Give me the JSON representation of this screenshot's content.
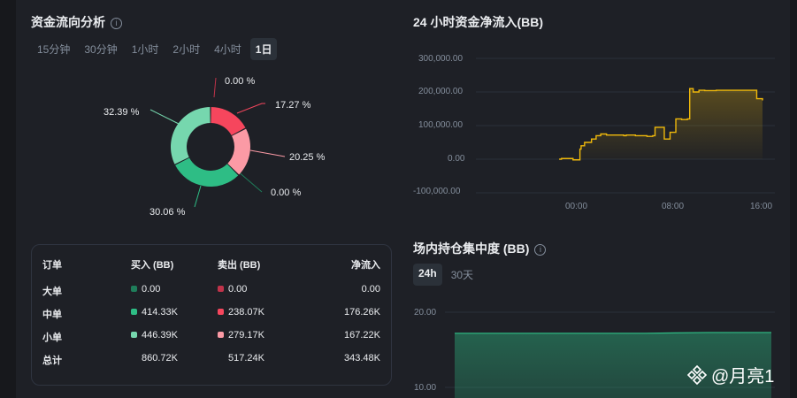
{
  "colors": {
    "bg": "#17181c",
    "panel": "#1e2026",
    "green_dark": "#1f7d5a",
    "green": "#2ebd85",
    "green_light": "#76d7ae",
    "red": "#f6465d",
    "red_light": "#fb9aa5",
    "red_dark": "#c0334a",
    "gold": "#f0b90b"
  },
  "flow": {
    "title": "资金流向分析",
    "tabs": [
      "15分钟",
      "30分钟",
      "1小时",
      "2小时",
      "4小时",
      "1日"
    ],
    "active_tab": "1日",
    "donut": {
      "labels": [
        "0.00 %",
        "17.27 %",
        "20.25 %",
        "0.00 %",
        "30.06 %",
        "32.39 %"
      ],
      "slices": [
        {
          "name": "大单卖出",
          "value": 0.0,
          "color": "#c0334a"
        },
        {
          "name": "中单卖出",
          "value": 17.27,
          "color": "#f6465d"
        },
        {
          "name": "小单卖出",
          "value": 20.25,
          "color": "#fb9aa5"
        },
        {
          "name": "大单买入",
          "value": 0.0,
          "color": "#1f7d5a"
        },
        {
          "name": "中单买入",
          "value": 30.06,
          "color": "#2ebd85"
        },
        {
          "name": "小单买入",
          "value": 32.39,
          "color": "#76d7ae"
        }
      ]
    },
    "table": {
      "headers": [
        "订单",
        "买入 (BB)",
        "卖出 (BB)",
        "净流入"
      ],
      "rows": [
        {
          "label": "大单",
          "buy": "0.00",
          "sell": "0.00",
          "net": "0.00",
          "buy_color": "#1f7d5a",
          "sell_color": "#c0334a"
        },
        {
          "label": "中单",
          "buy": "414.33K",
          "sell": "238.07K",
          "net": "176.26K",
          "buy_color": "#2ebd85",
          "sell_color": "#f6465d"
        },
        {
          "label": "小单",
          "buy": "446.39K",
          "sell": "279.17K",
          "net": "167.22K",
          "buy_color": "#76d7ae",
          "sell_color": "#fb9aa5"
        },
        {
          "label": "总计",
          "buy": "860.72K",
          "sell": "517.24K",
          "net": "343.48K"
        }
      ]
    }
  },
  "net_inflow": {
    "title": "24 小时资金净流入(BB)",
    "y_ticks": [
      "300,000.00",
      "200,000.00",
      "100,000.00",
      "0.00",
      "-100,000.00"
    ],
    "x_ticks": [
      "00:00",
      "08:00",
      "16:00"
    ]
  },
  "concentration": {
    "title": "场内持仓集中度 (BB)",
    "tabs": [
      "24h",
      "30天"
    ],
    "active_tab": "24h",
    "y_ticks": [
      "20.00",
      "10.00"
    ],
    "value": 17.2
  },
  "chart_data": [
    {
      "type": "area",
      "title": "24 小时资金净流入(BB)",
      "ylim": [
        -100000,
        300000
      ],
      "x_tick_labels": [
        "00:00",
        "08:00",
        "16:00"
      ],
      "x": [
        -1.6,
        -1.4,
        -0.4,
        0.2,
        0.3,
        0.6,
        1.2,
        1.6,
        2.0,
        2.5,
        3.0,
        4.0,
        4.2,
        5.0,
        6.0,
        6.5,
        6.7,
        7.0,
        7.2,
        7.5,
        7.7,
        8.0,
        8.5,
        9.0,
        9.5,
        9.7,
        10.0,
        10.5,
        11.0,
        12.0,
        13.0,
        14.0,
        15.0,
        15.5,
        16.0
      ],
      "values": [
        0,
        2000,
        -2000,
        30000,
        40000,
        50000,
        60000,
        70000,
        75000,
        72000,
        72000,
        70000,
        72000,
        70000,
        68000,
        70000,
        95000,
        95000,
        95000,
        60000,
        60000,
        80000,
        120000,
        118000,
        120000,
        210000,
        200000,
        205000,
        204000,
        205000,
        205000,
        205000,
        205000,
        180000,
        175000
      ]
    },
    {
      "type": "area",
      "title": "场内持仓集中度 (BB)",
      "y_tick_labels": [
        "20.00",
        "10.00"
      ],
      "values": [
        17.2,
        17.2,
        17.2,
        17.2,
        17.3,
        17.3
      ]
    }
  ],
  "watermark": "@月亮1"
}
